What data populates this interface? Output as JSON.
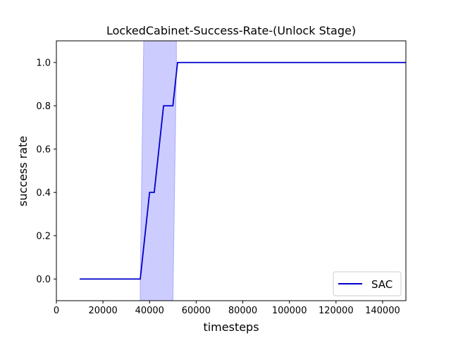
{
  "chart_data": {
    "type": "line",
    "title": "LockedCabinet-Success-Rate-(Unlock Stage)",
    "xlabel": "timesteps",
    "ylabel": "success rate",
    "xlim": [
      0,
      150000
    ],
    "ylim": [
      -0.1,
      1.1
    ],
    "xticks": [
      0,
      20000,
      40000,
      60000,
      80000,
      100000,
      120000,
      140000
    ],
    "yticks": [
      0.0,
      0.2,
      0.4,
      0.6,
      0.8,
      1.0
    ],
    "xtick_labels": [
      "0",
      "20000",
      "40000",
      "60000",
      "80000",
      "100000",
      "120000",
      "140000"
    ],
    "ytick_labels": [
      "0.0",
      "0.2",
      "0.4",
      "0.6",
      "0.8",
      "1.0"
    ],
    "grid": false,
    "legend_position": "bottom-right",
    "series": [
      {
        "name": "SAC",
        "color": "#0000cc",
        "band_color": "#aaaaff",
        "x": [
          10000,
          36000,
          40000,
          42000,
          46000,
          50000,
          52000,
          150000
        ],
        "y": [
          0.0,
          0.0,
          0.4,
          0.4,
          0.8,
          0.8,
          1.0,
          1.0
        ],
        "band": {
          "x": [
            36000,
            37500,
            40000,
            42000,
            46000,
            50000,
            51500
          ],
          "lower": [
            -0.1,
            -0.1,
            -0.1,
            -0.1,
            -0.1,
            -0.1,
            1.0
          ],
          "upper": [
            0.0,
            1.1,
            1.1,
            1.1,
            1.1,
            1.1,
            1.1
          ]
        }
      }
    ]
  }
}
